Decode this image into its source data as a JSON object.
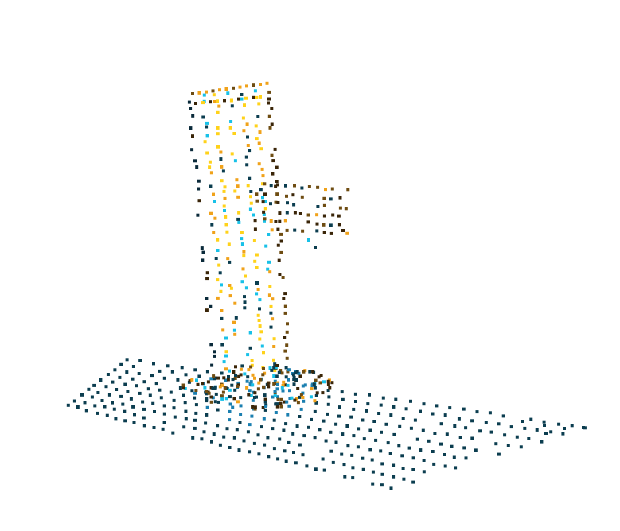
{
  "scene": {
    "type": "point-cloud",
    "background": "#ffffff",
    "palette": {
      "dark_teal": "#0b3d4f",
      "dark_blue": "#0a2a3a",
      "mid_blue": "#1b7fb0",
      "cyan": "#18c1e8",
      "yellow": "#ffd21a",
      "orange": "#f0a21a",
      "dark_brown": "#3a2508",
      "olive_brown": "#6e4c12"
    }
  }
}
